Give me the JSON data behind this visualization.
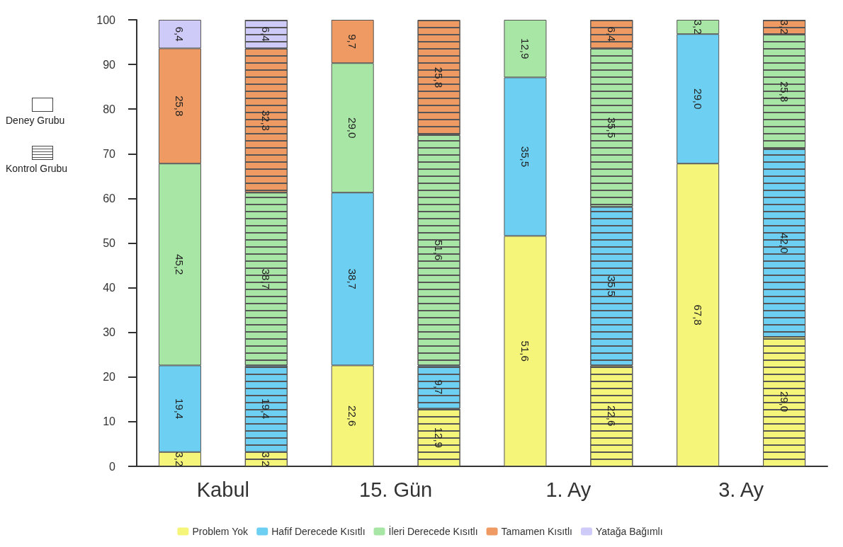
{
  "chart_data": {
    "type": "bar",
    "stacked": true,
    "categories": [
      "Kabul",
      null,
      "15. Gün",
      null,
      "1. Ay",
      null,
      "3. Ay",
      null
    ],
    "ylim": [
      0,
      100
    ],
    "yticks": [
      0,
      10,
      20,
      30,
      40,
      50,
      60,
      70,
      80,
      90,
      100
    ],
    "grid": false,
    "legend": "bottom",
    "annotations": [
      "Deney Grubu",
      "Kontrol Grubu"
    ],
    "series": [
      {
        "name": "Problem Yok",
        "color": "#f5f57a",
        "values": [
          3.2,
          3.2,
          22.6,
          12.9,
          51.6,
          22.6,
          67.8,
          29.0
        ],
        "value_labels": [
          "3,2",
          "3,2",
          "22,6",
          "12,9",
          "51,6",
          "22,6",
          "67,8",
          "29,0"
        ]
      },
      {
        "name": "Hafif Derecede Kısıtlı",
        "color": "#6dd0f2",
        "values": [
          19.4,
          19.4,
          38.7,
          9.7,
          35.5,
          35.5,
          29.0,
          42.0
        ],
        "value_labels": [
          "19,4",
          "19,4",
          "38,7",
          "9,7",
          "35,5",
          "35,5",
          "29,0",
          "42,0"
        ]
      },
      {
        "name": "İleri Derecede Kısıtlı",
        "color": "#a8e6a6",
        "values": [
          45.2,
          38.7,
          29.0,
          51.6,
          12.9,
          35.5,
          3.2,
          25.8
        ],
        "value_labels": [
          "45,2",
          "38,7",
          "29,0",
          "51,6",
          "12,9",
          "35,5",
          "3,2",
          "25,8"
        ]
      },
      {
        "name": "Tamamen Kısıtlı",
        "color": "#ee9a62",
        "values": [
          25.8,
          32.3,
          9.7,
          25.8,
          null,
          6.4,
          null,
          3.2
        ],
        "value_labels": [
          "25,8",
          "32,3",
          "9,7",
          "25,8",
          null,
          "6,4",
          null,
          "3,2"
        ]
      },
      {
        "name": "Yatağa Bağımlı",
        "color": "#cfcbf8",
        "values": [
          6.4,
          6.4,
          null,
          null,
          null,
          null,
          null,
          null
        ],
        "value_labels": [
          "6,4",
          "6,4",
          null,
          null,
          null,
          null,
          null,
          null
        ]
      }
    ]
  }
}
